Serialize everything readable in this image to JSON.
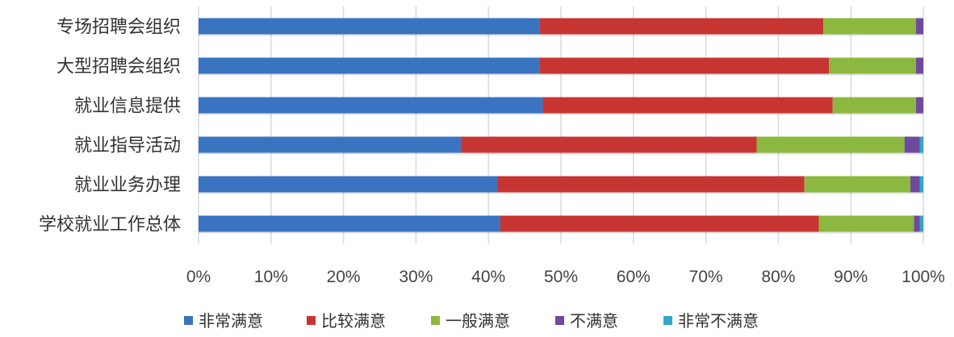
{
  "chart_data": {
    "type": "bar",
    "orientation": "horizontal",
    "stacked": "percent",
    "categories": [
      "专场招聘会组织",
      "大型招聘会组织",
      "就业信息提供",
      "就业指导活动",
      "就业业务办理",
      "学校就业工作总体"
    ],
    "series": [
      {
        "name": "非常满意",
        "color": "#3A74C0",
        "values": [
          47.1,
          47.1,
          47.5,
          36.2,
          41.2,
          41.6
        ]
      },
      {
        "name": "比较满意",
        "color": "#C73533",
        "values": [
          39.1,
          39.9,
          40.0,
          40.8,
          42.4,
          44.0
        ]
      },
      {
        "name": "一般满意",
        "color": "#8DB83F",
        "values": [
          12.8,
          12.0,
          11.5,
          20.4,
          14.6,
          13.1
        ]
      },
      {
        "name": "不满意",
        "color": "#6F4A9C",
        "values": [
          1.0,
          1.0,
          1.0,
          2.1,
          1.3,
          0.8
        ]
      },
      {
        "name": "非常不满意",
        "color": "#2FA8C8",
        "values": [
          0,
          0,
          0,
          0.5,
          0.5,
          0.5
        ]
      }
    ],
    "xticks": [
      "0%",
      "10%",
      "20%",
      "30%",
      "40%",
      "50%",
      "60%",
      "70%",
      "80%",
      "90%",
      "100%"
    ],
    "xlim": [
      0,
      100
    ],
    "grid": true,
    "legend": "bottom",
    "title": "",
    "xlabel": "",
    "ylabel": ""
  }
}
